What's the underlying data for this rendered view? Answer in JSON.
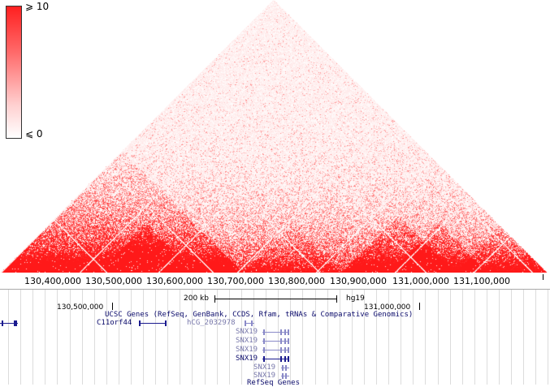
{
  "legend": {
    "max_label": "⩾ 10",
    "min_label": "⩽ 0",
    "colors": {
      "high": "#ff2020",
      "low": "#ffffff"
    }
  },
  "heatmap": {
    "description_type": "hic-triangle",
    "color": "#ff1a1a"
  },
  "coordinate_axis": {
    "ticks": [
      "130,400,000",
      "130,500,000",
      "130,600,000",
      "130,700,000",
      "130,800,000",
      "130,900,000",
      "131,000,000",
      "131,100,000"
    ]
  },
  "genome_browser": {
    "scale_label": "200 kb",
    "assembly": "hg19",
    "position_left": "130,500,000",
    "position_right": "131,000,000",
    "ucsc_track_title": "UCSC Genes (RefSeq, GenBank, CCDS, Rfam, tRNAs & Comparative Genomics)",
    "genes": [
      {
        "name": "C11orf44"
      },
      {
        "name": "hCG_2032978"
      },
      {
        "name": "SNX19"
      },
      {
        "name": "SNX19"
      },
      {
        "name": "SNX19"
      },
      {
        "name": "SNX19"
      },
      {
        "name": "SNX19"
      },
      {
        "name": "SNX19"
      }
    ],
    "refseq_track_title": "RefSeq Genes"
  }
}
